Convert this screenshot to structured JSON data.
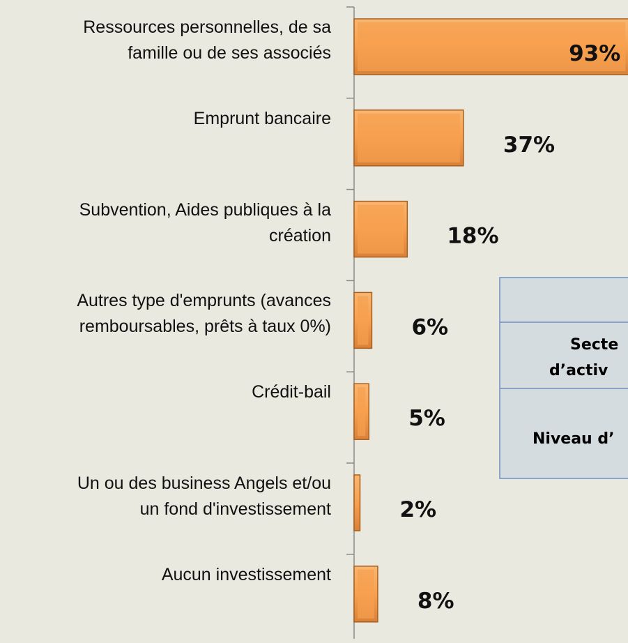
{
  "chart_data": {
    "type": "bar",
    "orientation": "horizontal",
    "categories": [
      "Ressources personnelles, de sa\nfamille ou de ses associés",
      "Emprunt bancaire",
      "Subvention, Aides publiques à la\ncréation",
      "Autres type d'emprunts (avances\nremboursables, prêts à taux 0%)",
      "Crédit-bail",
      "Un ou des business Angels et/ou\nun fond d'investissement",
      "Aucun investissement"
    ],
    "values": [
      93,
      37,
      18,
      6,
      5,
      2,
      8
    ],
    "value_labels": [
      "93%",
      "37%",
      "18%",
      "6%",
      "5%",
      "2%",
      "8%"
    ],
    "color": "#f7a04e"
  },
  "table": {
    "rows": [
      [
        ""
      ],
      [
        "Secte",
        "d’activ"
      ],
      [
        "Niveau d’"
      ]
    ]
  }
}
